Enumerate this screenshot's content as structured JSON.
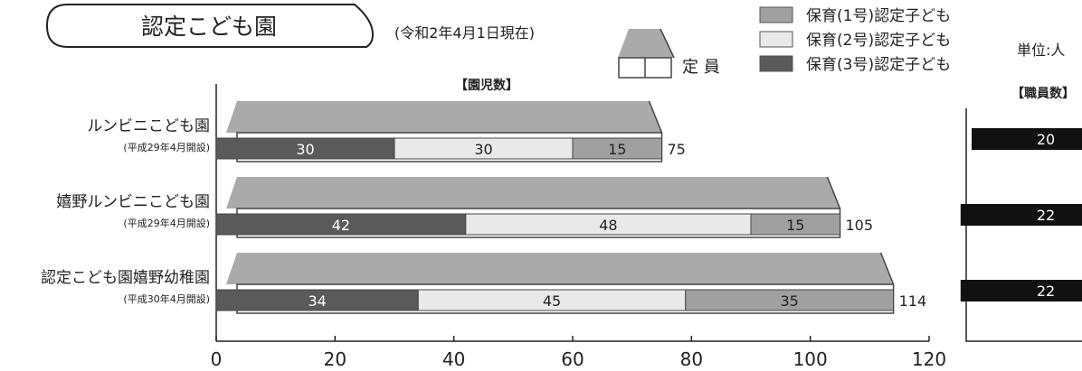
{
  "title": "認定こども園",
  "subtitle": "(令和2年4月1日現在)",
  "unit_label": "単位:人",
  "capacity_legend_label": "定 員",
  "enrolled_header": "【園児数】",
  "staff_header": "【職員数】",
  "colors": {
    "type3": "#5a5a5a",
    "type2": "#e9e9e9",
    "type1": "#a0a0a0",
    "roof": "#aaaaaa",
    "staff_bar": "#111111"
  },
  "chart_data": {
    "type": "bar",
    "orientation": "horizontal",
    "stacked": true,
    "categories": [
      "ルンビニこども園",
      "嬉野ルンビニこども園",
      "認定こども園嬉野幼稚園"
    ],
    "category_notes": [
      "(平成29年4月開設)",
      "(平成29年4月開設)",
      "(平成30年4月開設)"
    ],
    "series": [
      {
        "name": "保育(3号)認定子ども",
        "color": "#5a5a5a",
        "values": [
          30,
          42,
          34
        ]
      },
      {
        "name": "保育(2号)認定子ども",
        "color": "#e9e9e9",
        "values": [
          30,
          48,
          45
        ]
      },
      {
        "name": "保育(1号)認定子ども",
        "color": "#a0a0a0",
        "values": [
          15,
          15,
          35
        ]
      }
    ],
    "capacity": [
      75,
      105,
      114
    ],
    "staff": [
      20,
      22,
      22
    ],
    "xlim": [
      0,
      120
    ],
    "xticks": [
      0,
      20,
      40,
      60,
      80,
      100,
      120
    ],
    "legend_position": "top-right",
    "grid": false
  }
}
